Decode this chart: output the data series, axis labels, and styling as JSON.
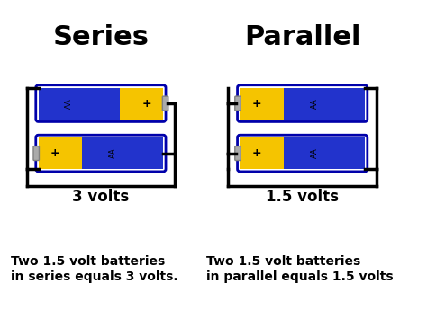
{
  "bg_color": "#ffffff",
  "title_series": "Series",
  "title_parallel": "Parallel",
  "title_fontsize": 22,
  "title_fontweight": "bold",
  "battery_blue": "#2233cc",
  "battery_yellow": "#f5c400",
  "battery_dark_blue": "#0000aa",
  "wire_color": "#000000",
  "terminal_color": "#aaaaaa",
  "label_3v": "3 volts",
  "label_15v": "1.5 volts",
  "label_fontsize": 12,
  "desc_series": "Two 1.5 volt batteries\nin series equals 3 volts.",
  "desc_parallel": "Two 1.5 volt batteries\nin parallel equals 1.5 volts",
  "desc_fontsize": 10,
  "plus_color": "#000000",
  "aa_color": "#000000"
}
